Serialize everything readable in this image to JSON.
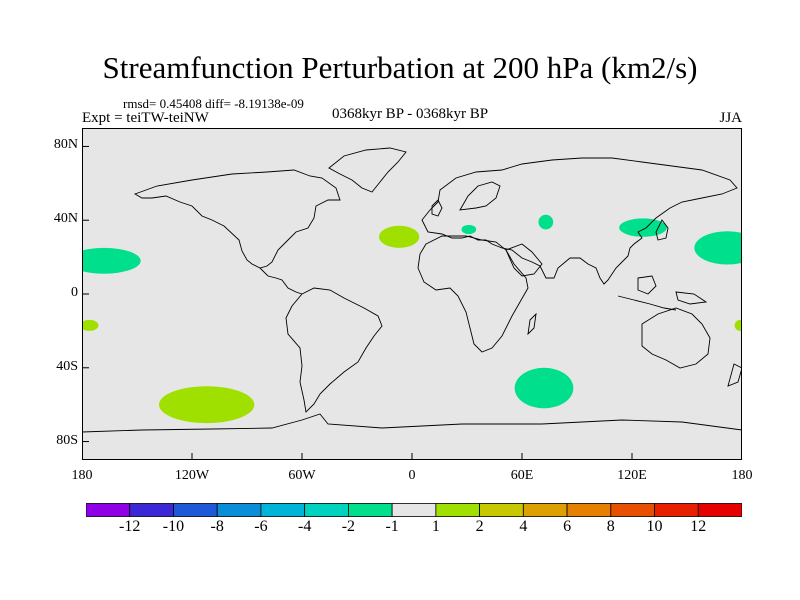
{
  "title": "Streamfunction Perturbation at 200 hPa (km2/s)",
  "stats": "rmsd= 0.45408 diff= -8.19138e-09",
  "experiment": "Expt = teiTW-teiNW",
  "period": "0368kyr BP - 0368kyr BP",
  "season": "JJA",
  "chart_data": {
    "type": "contour-map",
    "projection": "cylindrical-equidistant",
    "variable": "Streamfunction Perturbation at 200 hPa",
    "units": "km2/s",
    "season": "JJA",
    "xlim": [
      -180,
      180
    ],
    "ylim": [
      -90,
      90
    ],
    "x_ticks": [
      {
        "value": -180,
        "label": "180"
      },
      {
        "value": -120,
        "label": "120W"
      },
      {
        "value": -60,
        "label": "60W"
      },
      {
        "value": 0,
        "label": "0"
      },
      {
        "value": 60,
        "label": "60E"
      },
      {
        "value": 120,
        "label": "120E"
      },
      {
        "value": 180,
        "label": "180"
      }
    ],
    "y_ticks": [
      {
        "value": 80,
        "label": "80N"
      },
      {
        "value": 40,
        "label": "40N"
      },
      {
        "value": 0,
        "label": "0"
      },
      {
        "value": -40,
        "label": "40S"
      },
      {
        "value": -80,
        "label": "80S"
      }
    ],
    "background_color": "#e6e6e6",
    "colorbar": {
      "levels": [
        "-12",
        "-10",
        "-8",
        "-6",
        "-4",
        "-2",
        "-1",
        "1",
        "2",
        "4",
        "6",
        "8",
        "10",
        "12"
      ],
      "colors": [
        "#8f00e6",
        "#3c28d6",
        "#1e5ad8",
        "#0a8ed8",
        "#00b4d8",
        "#00d2c0",
        "#00e08c",
        "#e6e6e6",
        "#a0e000",
        "#c8c800",
        "#dca000",
        "#e68000",
        "#e65000",
        "#e62000",
        "#e60000"
      ]
    },
    "anomaly_regions": [
      {
        "name": "north-pacific-east-neg",
        "lon": -168,
        "lat": 18,
        "rlon": 20,
        "rlat": 7,
        "bin": "-2 to -1",
        "color": "#00e08c"
      },
      {
        "name": "north-pacific-west-neg",
        "lon": 172,
        "lat": 25,
        "rlon": 18,
        "rlat": 9,
        "bin": "-2 to -1",
        "color": "#00e08c"
      },
      {
        "name": "east-asia-neg",
        "lon": 126,
        "lat": 36,
        "rlon": 13,
        "rlat": 5,
        "bin": "-2 to -1",
        "color": "#00e08c"
      },
      {
        "name": "central-asia-neg",
        "lon": 73,
        "lat": 39,
        "rlon": 4,
        "rlat": 4,
        "bin": "-2 to -1",
        "color": "#00e08c"
      },
      {
        "name": "eastern-med-neg",
        "lon": 31,
        "lat": 35,
        "rlon": 4,
        "rlat": 2.5,
        "bin": "-2 to -1",
        "color": "#00e08c"
      },
      {
        "name": "southern-ocean-neg",
        "lon": 72,
        "lat": -51,
        "rlon": 16,
        "rlat": 11,
        "bin": "-2 to -1",
        "color": "#00e08c"
      },
      {
        "name": "north-africa-pos",
        "lon": -7,
        "lat": 31,
        "rlon": 11,
        "rlat": 6,
        "bin": "1 to 2",
        "color": "#a0e000"
      },
      {
        "name": "south-pacific-pos",
        "lon": -112,
        "lat": -60,
        "rlon": 26,
        "rlat": 10,
        "bin": "1 to 2",
        "color": "#a0e000"
      },
      {
        "name": "west-edge-pos",
        "lon": -176,
        "lat": -17,
        "rlon": 5,
        "rlat": 3,
        "bin": "1 to 2",
        "color": "#a0e000"
      },
      {
        "name": "east-edge-pos",
        "lon": 179,
        "lat": -17,
        "rlon": 3,
        "rlat": 3,
        "bin": "1 to 2",
        "color": "#a0e000"
      }
    ]
  }
}
